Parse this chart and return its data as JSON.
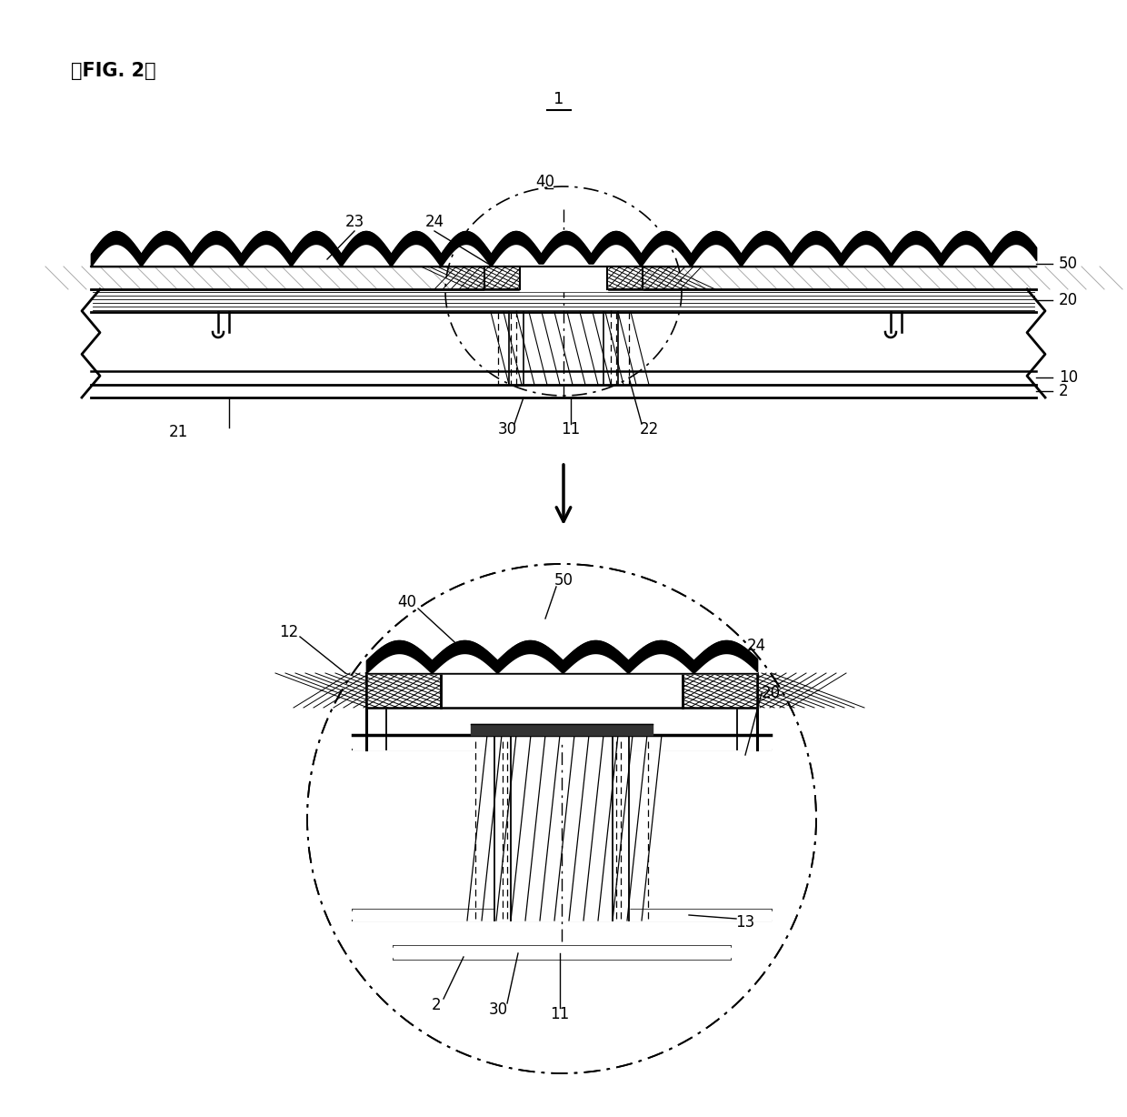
{
  "bg_color": "#ffffff",
  "line_color": "#000000",
  "fig_label": "「FIG. 2」"
}
